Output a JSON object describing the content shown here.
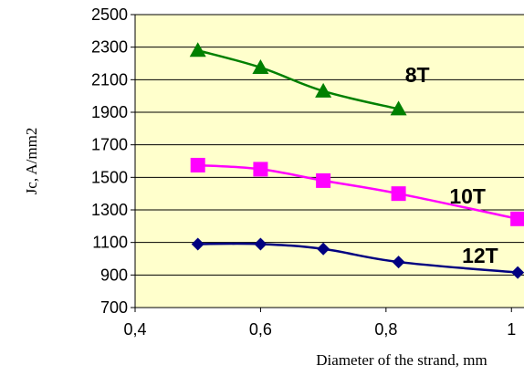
{
  "chart_data": {
    "type": "line",
    "xlabel": "Diameter of the strand, mm",
    "ylabel": "Jc, A/mm2",
    "xlim": [
      0.4,
      1.02
    ],
    "ylim": [
      700,
      2500
    ],
    "x_ticks": [
      "0,4",
      "0,6",
      "0,8",
      "1"
    ],
    "y_ticks": [
      "700",
      "900",
      "1100",
      "1300",
      "1500",
      "1700",
      "1900",
      "2100",
      "2300",
      "2500"
    ],
    "grid": "horizontal",
    "plot_background": "#ffffcc",
    "series": [
      {
        "name": "8T",
        "color": "#008000",
        "marker": "triangle",
        "x": [
          0.5,
          0.6,
          0.7,
          0.82
        ],
        "y": [
          2280,
          2175,
          2030,
          1920
        ]
      },
      {
        "name": "10T",
        "color": "#ff00ff",
        "marker": "square",
        "x": [
          0.5,
          0.6,
          0.7,
          0.82,
          1.01
        ],
        "y": [
          1575,
          1550,
          1480,
          1400,
          1245
        ]
      },
      {
        "name": "12T",
        "color": "#000080",
        "marker": "diamond",
        "x": [
          0.5,
          0.6,
          0.7,
          0.82,
          1.01
        ],
        "y": [
          1090,
          1090,
          1060,
          980,
          915
        ]
      }
    ]
  }
}
